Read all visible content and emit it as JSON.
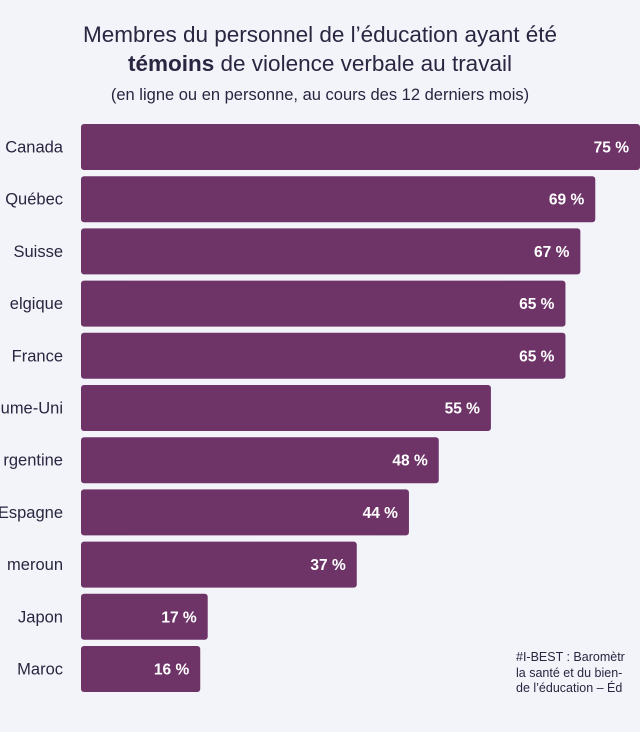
{
  "header": {
    "title_line1": "Membres du personnel de l’éducation ayant été",
    "title_line2_bold": "témoins",
    "title_line2_rest": " de violence verbale au travail",
    "subtitle": "(en ligne ou en personne, au cours des 12 derniers mois)"
  },
  "source": {
    "line1": "#I-BEST : Baromètr",
    "line2": "la santé et du bien-",
    "line3": "de l’éducation – Éd"
  },
  "colors": {
    "bar": "#6e3468",
    "background": "#f3f4f9",
    "text": "#2a2540"
  },
  "chart_data": {
    "type": "bar",
    "orientation": "horizontal",
    "categories": [
      "Canada",
      "Québec",
      "Suisse",
      "Belgique",
      "France",
      "Royaume-Uni",
      "Argentine",
      "Espagne",
      "Cameroun",
      "Japon",
      "Maroc"
    ],
    "visible_category_labels": [
      "Canada",
      "Québec",
      "Suisse",
      "elgique",
      "France",
      "ume-Uni",
      "rgentine",
      "Espagne",
      "meroun",
      "Japon",
      "Maroc"
    ],
    "values": [
      75,
      69,
      67,
      65,
      65,
      55,
      48,
      44,
      37,
      17,
      16
    ],
    "value_labels": [
      "75 %",
      "69 %",
      "67 %",
      "65 %",
      "65 %",
      "55 %",
      "48 %",
      "44 %",
      "37 %",
      "17 %",
      "16 %"
    ],
    "unit": "%",
    "xlim": [
      0,
      75
    ],
    "grid": false,
    "legend": "none"
  }
}
